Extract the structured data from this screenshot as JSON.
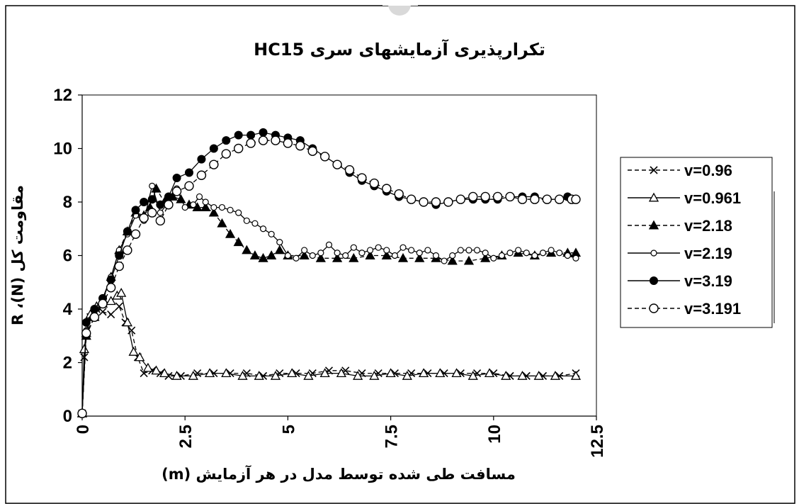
{
  "chart_data": {
    "type": "line",
    "title": "تکرارپذیری آزمایشهای سری HC15",
    "xlabel": "مسافت طی شده توسط مدل در هر آزمایش (m)",
    "ylabel": "مقاومت کل (N)، R",
    "xlim": [
      0,
      12.5
    ],
    "ylim": [
      0,
      12
    ],
    "xticks": [
      "0",
      "2.5",
      "5",
      "7.5",
      "10",
      "12.5"
    ],
    "yticks": [
      "0",
      "2",
      "4",
      "6",
      "8",
      "10",
      "12"
    ],
    "grid": false,
    "legend_position": "right",
    "series": [
      {
        "name": "v=0.96",
        "color": "#000000",
        "dash": "dashed",
        "marker": "x",
        "x": [
          0,
          0.05,
          0.1,
          0.2,
          0.35,
          0.5,
          0.7,
          0.9,
          1.05,
          1.2,
          1.35,
          1.5,
          1.7,
          1.9,
          2.1,
          2.4,
          2.8,
          3.2,
          3.6,
          4.0,
          4.4,
          4.8,
          5.2,
          5.6,
          6.0,
          6.4,
          6.8,
          7.2,
          7.6,
          8.0,
          8.4,
          8.8,
          9.2,
          9.6,
          10.0,
          10.4,
          10.8,
          11.2,
          11.6,
          12.0
        ],
        "y": [
          0.1,
          2.2,
          3.0,
          3.7,
          4.0,
          3.9,
          3.8,
          4.1,
          3.5,
          3.2,
          2.2,
          1.6,
          1.7,
          1.6,
          1.5,
          1.5,
          1.6,
          1.6,
          1.6,
          1.6,
          1.5,
          1.6,
          1.6,
          1.6,
          1.7,
          1.7,
          1.6,
          1.6,
          1.6,
          1.6,
          1.6,
          1.6,
          1.6,
          1.6,
          1.6,
          1.5,
          1.5,
          1.5,
          1.5,
          1.6
        ]
      },
      {
        "name": "v=0.961",
        "color": "#000000",
        "dash": "solid",
        "marker": "triangle-open",
        "x": [
          0,
          0.05,
          0.1,
          0.2,
          0.35,
          0.5,
          0.7,
          0.85,
          0.95,
          1.1,
          1.25,
          1.4,
          1.6,
          1.8,
          2.0,
          2.3,
          2.7,
          3.1,
          3.5,
          3.9,
          4.3,
          4.7,
          5.1,
          5.5,
          5.9,
          6.3,
          6.7,
          7.1,
          7.5,
          7.9,
          8.3,
          8.7,
          9.1,
          9.5,
          9.9,
          10.3,
          10.7,
          11.1,
          11.5,
          12.0
        ],
        "y": [
          0.1,
          2.5,
          3.1,
          3.8,
          4.1,
          4.2,
          4.3,
          4.5,
          4.6,
          3.5,
          2.4,
          2.2,
          1.8,
          1.7,
          1.6,
          1.5,
          1.5,
          1.6,
          1.6,
          1.5,
          1.5,
          1.5,
          1.6,
          1.5,
          1.6,
          1.6,
          1.5,
          1.5,
          1.6,
          1.5,
          1.6,
          1.6,
          1.6,
          1.5,
          1.6,
          1.5,
          1.5,
          1.5,
          1.5,
          1.5
        ]
      },
      {
        "name": "v=2.18",
        "color": "#000000",
        "dash": "dashed",
        "marker": "triangle-filled",
        "x": [
          0,
          0.1,
          0.3,
          0.5,
          0.7,
          0.9,
          1.1,
          1.3,
          1.5,
          1.65,
          1.8,
          2.0,
          2.2,
          2.4,
          2.6,
          2.8,
          3.0,
          3.2,
          3.4,
          3.6,
          3.8,
          4.0,
          4.2,
          4.4,
          4.6,
          4.8,
          5.0,
          5.4,
          5.8,
          6.2,
          6.6,
          7.0,
          7.4,
          7.8,
          8.2,
          8.6,
          9.0,
          9.4,
          9.8,
          10.2,
          10.6,
          11.0,
          11.4,
          11.8,
          12.0
        ],
        "y": [
          0.1,
          3.0,
          3.7,
          4.3,
          5.2,
          6.2,
          6.9,
          7.6,
          7.5,
          7.8,
          8.5,
          8.0,
          8.2,
          8.1,
          7.9,
          7.8,
          7.8,
          7.6,
          7.2,
          6.8,
          6.5,
          6.2,
          6.0,
          5.9,
          6.0,
          6.2,
          6.0,
          6.0,
          5.9,
          5.9,
          5.9,
          6.0,
          6.0,
          5.9,
          5.9,
          5.9,
          5.8,
          5.8,
          5.9,
          6.0,
          6.1,
          6.0,
          6.1,
          6.1,
          6.1
        ]
      },
      {
        "name": "v=2.19",
        "color": "#000000",
        "dash": "solid",
        "marker": "circle-open-small",
        "x": [
          0,
          0.1,
          0.3,
          0.5,
          0.7,
          0.9,
          1.1,
          1.3,
          1.5,
          1.7,
          1.9,
          2.1,
          2.3,
          2.5,
          2.7,
          2.85,
          3.0,
          3.2,
          3.4,
          3.6,
          3.8,
          4.0,
          4.2,
          4.4,
          4.6,
          4.8,
          5.0,
          5.2,
          5.4,
          5.6,
          5.8,
          6.0,
          6.2,
          6.4,
          6.6,
          6.8,
          7.0,
          7.2,
          7.4,
          7.6,
          7.8,
          8.0,
          8.2,
          8.4,
          8.6,
          8.8,
          9.0,
          9.2,
          9.4,
          9.6,
          9.8,
          10.0,
          10.2,
          10.4,
          10.6,
          10.8,
          11.0,
          11.2,
          11.4,
          11.6,
          11.8,
          12.0
        ],
        "y": [
          0.1,
          3.2,
          4.0,
          4.4,
          5.2,
          6.2,
          6.8,
          7.5,
          7.3,
          8.6,
          7.6,
          8.0,
          8.5,
          7.8,
          7.9,
          8.2,
          8.0,
          7.8,
          7.8,
          7.7,
          7.6,
          7.3,
          7.2,
          7.0,
          6.8,
          6.5,
          6.0,
          5.9,
          6.2,
          6.0,
          6.1,
          6.4,
          6.1,
          6.0,
          6.3,
          6.1,
          6.2,
          6.3,
          6.2,
          6.0,
          6.3,
          6.2,
          6.1,
          6.2,
          6.0,
          5.8,
          6.0,
          6.2,
          6.2,
          6.2,
          6.1,
          5.9,
          6.0,
          6.1,
          6.2,
          6.1,
          6.0,
          6.1,
          6.2,
          6.1,
          6.0,
          5.9
        ]
      },
      {
        "name": "v=3.19",
        "color": "#000000",
        "dash": "solid",
        "marker": "circle-filled",
        "x": [
          0,
          0.1,
          0.3,
          0.5,
          0.7,
          0.9,
          1.1,
          1.3,
          1.5,
          1.7,
          1.9,
          2.1,
          2.3,
          2.6,
          2.9,
          3.2,
          3.5,
          3.8,
          4.1,
          4.4,
          4.7,
          5.0,
          5.3,
          5.6,
          5.9,
          6.2,
          6.5,
          6.8,
          7.1,
          7.4,
          7.7,
          8.0,
          8.3,
          8.6,
          8.9,
          9.2,
          9.5,
          9.8,
          10.1,
          10.4,
          10.7,
          11.0,
          11.3,
          11.6,
          11.8
        ],
        "y": [
          0.1,
          3.5,
          4.0,
          4.4,
          5.1,
          6.0,
          6.9,
          7.7,
          8.0,
          8.1,
          7.9,
          8.2,
          8.9,
          9.1,
          9.6,
          10.0,
          10.3,
          10.5,
          10.5,
          10.6,
          10.5,
          10.4,
          10.3,
          10.0,
          9.7,
          9.4,
          9.1,
          8.8,
          8.6,
          8.4,
          8.2,
          8.1,
          8.0,
          7.9,
          8.0,
          8.1,
          8.1,
          8.1,
          8.1,
          8.2,
          8.2,
          8.2,
          8.1,
          8.1,
          8.2
        ]
      },
      {
        "name": "v=3.191",
        "color": "#000000",
        "dash": "dashed",
        "marker": "circle-open",
        "x": [
          0,
          0.1,
          0.3,
          0.5,
          0.7,
          0.9,
          1.1,
          1.3,
          1.5,
          1.7,
          1.9,
          2.1,
          2.3,
          2.6,
          2.9,
          3.2,
          3.5,
          3.8,
          4.1,
          4.4,
          4.7,
          5.0,
          5.3,
          5.6,
          5.9,
          6.2,
          6.5,
          6.8,
          7.1,
          7.4,
          7.7,
          8.0,
          8.3,
          8.6,
          8.9,
          9.2,
          9.5,
          9.8,
          10.1,
          10.4,
          10.7,
          11.0,
          11.3,
          11.6,
          11.9,
          12.0
        ],
        "y": [
          0.1,
          3.1,
          3.7,
          4.2,
          4.8,
          5.6,
          6.2,
          6.8,
          7.4,
          7.6,
          7.3,
          7.9,
          8.4,
          8.6,
          9.0,
          9.4,
          9.8,
          10.0,
          10.2,
          10.3,
          10.3,
          10.2,
          10.1,
          9.9,
          9.7,
          9.4,
          9.2,
          8.9,
          8.7,
          8.5,
          8.3,
          8.1,
          8.0,
          8.0,
          8.0,
          8.1,
          8.2,
          8.2,
          8.2,
          8.2,
          8.1,
          8.1,
          8.1,
          8.1,
          8.1,
          8.1
        ]
      }
    ]
  }
}
